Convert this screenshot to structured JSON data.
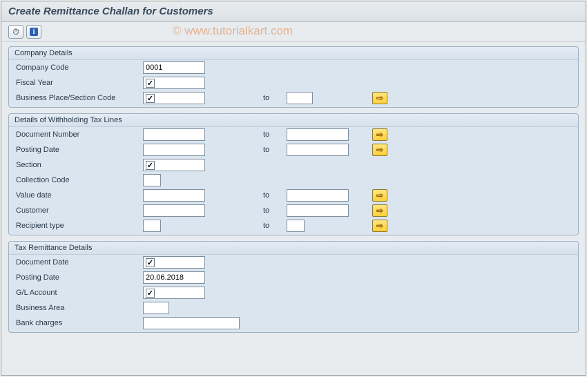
{
  "window": {
    "title": "Create Remittance Challan for Customers"
  },
  "watermark": "© www.tutorialkart.com",
  "toolbar": {
    "execute_icon": "⏱",
    "info_icon": "i"
  },
  "groups": {
    "company": {
      "title": "Company Details",
      "company_code": {
        "label": "Company Code",
        "value": "0001"
      },
      "fiscal_year": {
        "label": "Fiscal Year",
        "checked": true
      },
      "business_place": {
        "label": "Business Place/Section Code",
        "checked": true,
        "to": "to"
      }
    },
    "wht": {
      "title": "Details of Withholding Tax Lines",
      "doc_number": {
        "label": "Document Number",
        "to": "to"
      },
      "posting_date": {
        "label": "Posting Date",
        "to": "to"
      },
      "section": {
        "label": "Section",
        "checked": true
      },
      "collection_code": {
        "label": "Collection Code"
      },
      "value_date": {
        "label": "Value date",
        "to": "to"
      },
      "customer": {
        "label": "Customer",
        "to": "to"
      },
      "recipient_type": {
        "label": "Recipient type",
        "to": "to"
      }
    },
    "tax": {
      "title": "Tax Remittance Details",
      "doc_date": {
        "label": "Document Date",
        "checked": true
      },
      "posting_date": {
        "label": "Posting Date",
        "value": "20.06.2018"
      },
      "gl_account": {
        "label": "G/L Account",
        "checked": true
      },
      "business_area": {
        "label": "Business Area"
      },
      "bank_charges": {
        "label": "Bank charges"
      }
    }
  },
  "colors": {
    "group_bg": "#dbe5ef",
    "border": "#9fb0c2",
    "range_btn_bg": "#ffcf3a"
  }
}
